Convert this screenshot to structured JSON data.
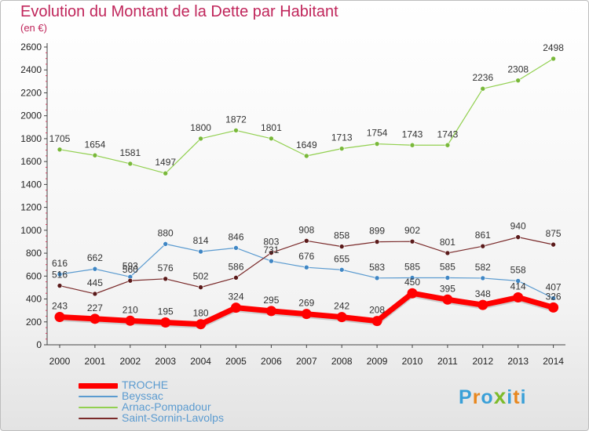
{
  "title": "Evolution du Montant de la Dette par Habitant",
  "subtitle": "(en €)",
  "logo": {
    "text": "Proxiti",
    "colors": [
      "#3aa0d8",
      "#e8871e",
      "#3aa0d8",
      "#7dbb2b",
      "#3aa0d8",
      "#e8871e",
      "#3aa0d8"
    ]
  },
  "chart_data": {
    "type": "line",
    "title": "Evolution du Montant de la Dette par Habitant",
    "subtitle": "(en €)",
    "xlabel": "",
    "ylabel": "",
    "categories": [
      "2000",
      "2001",
      "2002",
      "2003",
      "2004",
      "2005",
      "2006",
      "2007",
      "2008",
      "2009",
      "2010",
      "2011",
      "2012",
      "2013",
      "2014"
    ],
    "ylim": [
      0,
      2600
    ],
    "yticks": [
      "0",
      "200",
      "400",
      "600",
      "800",
      "1000",
      "1200",
      "1400",
      "1600",
      "1800",
      "2000",
      "2200",
      "2400",
      "2600"
    ],
    "grid": false,
    "legend_position": "bottom-left",
    "series": [
      {
        "name": "TROCHE",
        "color": "#ff0000",
        "values": [
          243,
          227,
          210,
          195,
          180,
          324,
          295,
          269,
          242,
          208,
          450,
          395,
          348,
          414,
          326
        ]
      },
      {
        "name": "Beyssac",
        "color": "#5b9bd0",
        "values": [
          616,
          662,
          593,
          880,
          814,
          846,
          731,
          676,
          655,
          583,
          585,
          585,
          582,
          558,
          407
        ]
      },
      {
        "name": "Arnac-Pompadour",
        "color": "#92d050",
        "values": [
          1705,
          1654,
          1581,
          1497,
          1800,
          1872,
          1801,
          1649,
          1713,
          1754,
          1743,
          1743,
          2236,
          2308,
          2498
        ]
      },
      {
        "name": "Saint-Sornin-Lavolps",
        "color": "#7a2a2a",
        "values": [
          516,
          445,
          560,
          576,
          502,
          586,
          803,
          908,
          858,
          899,
          902,
          801,
          861,
          940,
          875
        ]
      }
    ]
  }
}
